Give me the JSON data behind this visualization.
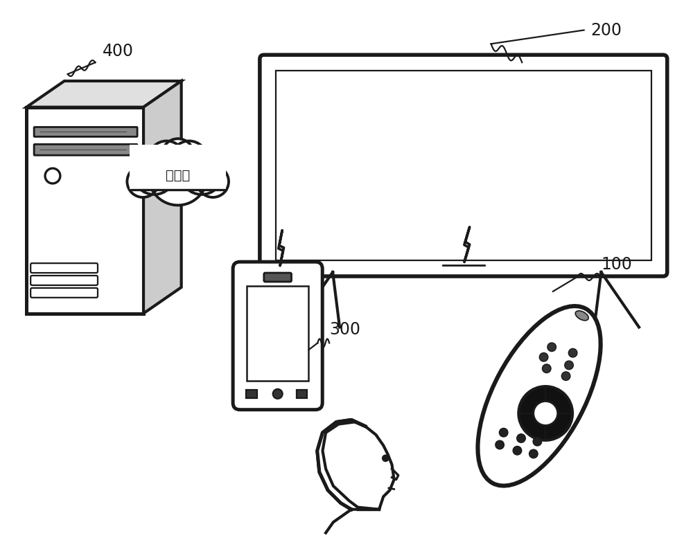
{
  "bg_color": "#ffffff",
  "label_400": "400",
  "label_200": "200",
  "label_300": "300",
  "label_100": "100",
  "internet_text": "互联网",
  "fig_width": 10.0,
  "fig_height": 8.04,
  "line_color": "#1a1a1a",
  "line_width": 2.0
}
